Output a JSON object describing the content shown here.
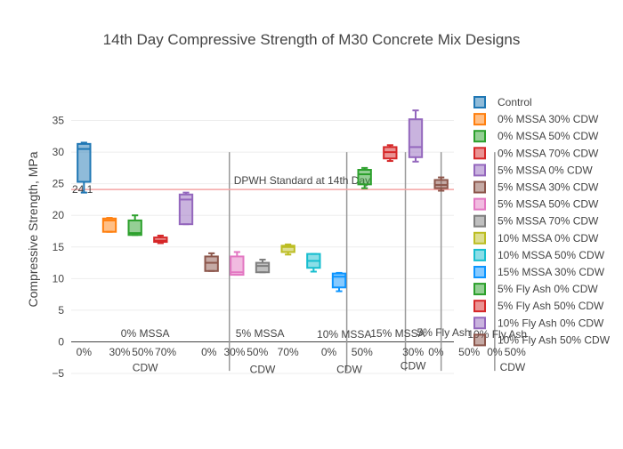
{
  "chart_data": {
    "type": "box",
    "title": "14th Day Compressive Strength of M30 Concrete Mix Designs",
    "ylabel": "Compressive Strength, MPa",
    "xlabel": "",
    "ylim": [
      -5,
      40
    ],
    "yticks": [
      "−5",
      "0",
      "5",
      "10",
      "15",
      "20",
      "25",
      "30",
      "35"
    ],
    "grid": true,
    "legend_position": "right",
    "reference_line": {
      "value": 24.1,
      "label": "24.1",
      "annotation": "DPWH Standard at 14th Day",
      "color": "#f4a5a5"
    },
    "series": [
      {
        "name": "Control",
        "color": "#1f77b4",
        "q1": 25.3,
        "median": 30.5,
        "q3": 31.3,
        "min": 23.6,
        "max": 31.5
      },
      {
        "name": "0% MSSA 30% CDW",
        "color": "#ff7f0e",
        "q1": 17.4,
        "median": 19.2,
        "q3": 19.5,
        "min": 17.4,
        "max": 19.6
      },
      {
        "name": "0% MSSA 50% CDW",
        "color": "#2ca02c",
        "q1": 16.9,
        "median": 17.2,
        "q3": 19.2,
        "min": 16.9,
        "max": 20.0
      },
      {
        "name": "0% MSSA 70% CDW",
        "color": "#d62728",
        "q1": 15.8,
        "median": 16.0,
        "q3": 16.5,
        "min": 15.6,
        "max": 16.8
      },
      {
        "name": "5% MSSA 0% CDW",
        "color": "#9467bd",
        "q1": 18.6,
        "median": 22.5,
        "q3": 23.3,
        "min": 18.6,
        "max": 23.6
      },
      {
        "name": "5% MSSA 30% CDW",
        "color": "#8c564b",
        "q1": 11.2,
        "median": 12.5,
        "q3": 13.5,
        "min": 11.2,
        "max": 14.0
      },
      {
        "name": "5% MSSA 50% CDW",
        "color": "#e377c2",
        "q1": 10.6,
        "median": 11.0,
        "q3": 13.5,
        "min": 10.6,
        "max": 14.2
      },
      {
        "name": "5% MSSA 70% CDW",
        "color": "#7f7f7f",
        "q1": 11.0,
        "median": 12.0,
        "q3": 12.5,
        "min": 11.0,
        "max": 13.0
      },
      {
        "name": "10% MSSA 0% CDW",
        "color": "#bcbd22",
        "q1": 14.2,
        "median": 15.0,
        "q3": 15.2,
        "min": 13.8,
        "max": 15.4
      },
      {
        "name": "10% MSSA 50% CDW",
        "color": "#17becf",
        "q1": 11.7,
        "median": 12.8,
        "q3": 13.9,
        "min": 11.1,
        "max": 13.9
      },
      {
        "name": "15% MSSA 30% CDW",
        "color": "#0d95ff",
        "q1": 8.6,
        "median": 10.3,
        "q3": 10.8,
        "min": 8.0,
        "max": 10.9
      },
      {
        "name": "5% Fly Ash 0% CDW",
        "color": "#2ca02c",
        "q1": 24.9,
        "median": 26.5,
        "q3": 27.2,
        "min": 24.3,
        "max": 27.5
      },
      {
        "name": "5% Fly Ash 50% CDW",
        "color": "#d62728",
        "q1": 29.0,
        "median": 30.0,
        "q3": 30.8,
        "min": 28.6,
        "max": 31.1
      },
      {
        "name": "10% Fly Ash 0% CDW",
        "color": "#9467bd",
        "q1": 29.2,
        "median": 30.8,
        "q3": 35.2,
        "min": 28.5,
        "max": 36.6
      },
      {
        "name": "10% Fly Ash 50% CDW",
        "color": "#8c564b",
        "q1": 24.3,
        "median": 24.8,
        "q3": 25.6,
        "min": 23.9,
        "max": 26.0
      }
    ],
    "category_annotations": [
      {
        "text": "0% MSSA",
        "x": 2.4,
        "y": 1.3
      },
      {
        "text": "0%",
        "x": 0.0,
        "y": -1.6
      },
      {
        "text": "30%",
        "x": 1.4,
        "y": -1.6
      },
      {
        "text": "50%",
        "x": 2.3,
        "y": -1.6
      },
      {
        "text": "70%",
        "x": 3.2,
        "y": -1.6
      },
      {
        "text": "CDW",
        "x": 2.4,
        "y": -4.1
      },
      {
        "text": "5% MSSA",
        "x": 6.9,
        "y": 1.3
      },
      {
        "text": "0%",
        "x": 4.9,
        "y": -1.6
      },
      {
        "text": "30%",
        "x": 5.9,
        "y": -1.6
      },
      {
        "text": "50%",
        "x": 6.8,
        "y": -1.6
      },
      {
        "text": "70%",
        "x": 8.0,
        "y": -1.6
      },
      {
        "text": "CDW",
        "x": 7.0,
        "y": -4.4
      },
      {
        "text": "10% MSSA",
        "x": 10.2,
        "y": 1.2
      },
      {
        "text": "0%",
        "x": 9.6,
        "y": -1.6
      },
      {
        "text": "50%",
        "x": 10.9,
        "y": -1.6
      },
      {
        "text": "CDW",
        "x": 10.4,
        "y": -4.4
      },
      {
        "text": "15% MSSA",
        "x": 12.3,
        "y": 1.3
      },
      {
        "text": "30%",
        "x": 12.9,
        "y": -1.6
      },
      {
        "text": "CDW",
        "x": 12.9,
        "y": -3.8
      },
      {
        "text": "5% Fly Ash",
        "x": 14.1,
        "y": 1.5
      },
      {
        "text": "0%",
        "x": 13.8,
        "y": -1.6
      },
      {
        "text": "50%",
        "x": 15.1,
        "y": -1.6
      },
      {
        "text": "10% Fly Ash",
        "x": 16.2,
        "y": 1.2
      },
      {
        "text": "0%",
        "x": 16.1,
        "y": -1.6
      },
      {
        "text": "50%",
        "x": 16.9,
        "y": -1.6
      },
      {
        "text": "CDW",
        "x": 16.8,
        "y": -4.0
      }
    ],
    "separators": [
      5.7,
      10.3,
      12.6,
      14.0,
      16.1
    ]
  }
}
